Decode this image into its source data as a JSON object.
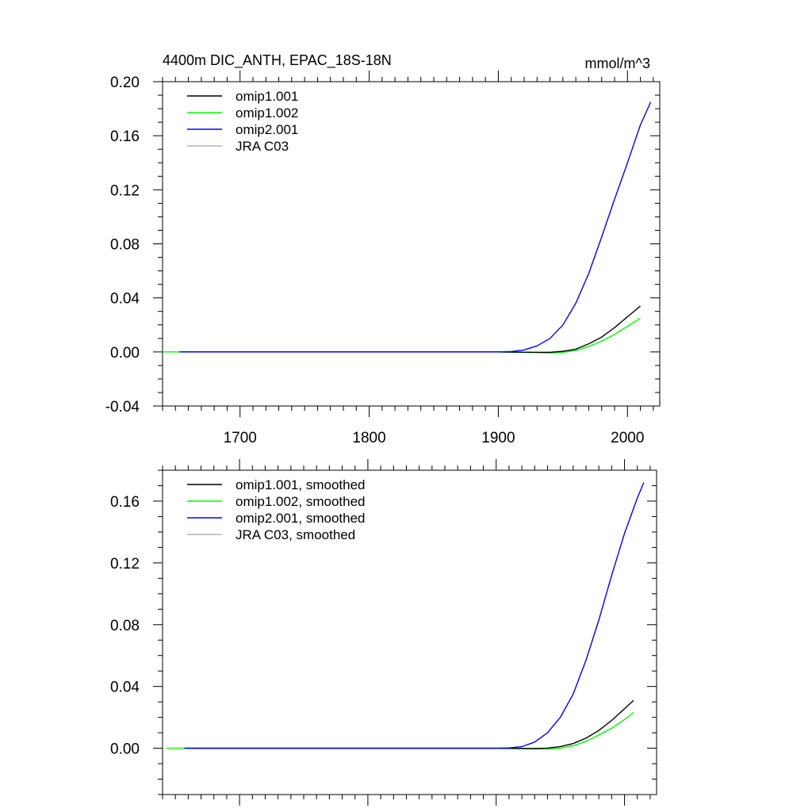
{
  "chart_data": [
    {
      "type": "line",
      "title": "4400m DIC_ANTH, EPAC_18S-18N",
      "units": "mmol/m^3",
      "xlim": [
        1640,
        2025
      ],
      "ylim": [
        -0.04,
        0.2
      ],
      "x_ticks": [
        1700,
        1800,
        1900,
        2000
      ],
      "x_tick_labels": [
        "1700",
        "1800",
        "1900",
        "2000"
      ],
      "y_ticks": [
        -0.04,
        0.0,
        0.04,
        0.08,
        0.12,
        0.16,
        0.2
      ],
      "y_tick_labels": [
        "-0.04",
        "0.00",
        "0.04",
        "0.08",
        "0.12",
        "0.16",
        "0.20"
      ],
      "legend_position": "top-left",
      "series": [
        {
          "name": "omip1.001",
          "color": "#000000",
          "x": [
            1653,
            1700,
            1800,
            1900,
            1930,
            1940,
            1950,
            1960,
            1970,
            1980,
            1990,
            2000,
            2010
          ],
          "y": [
            0,
            0,
            0,
            0,
            -0.0003,
            -0.0003,
            0.0005,
            0.002,
            0.006,
            0.011,
            0.018,
            0.026,
            0.034
          ]
        },
        {
          "name": "omip1.002",
          "color": "#00ff00",
          "x": [
            1640,
            1700,
            1800,
            1900,
            1930,
            1940,
            1950,
            1960,
            1970,
            1980,
            1990,
            2000,
            2010
          ],
          "y": [
            0,
            0,
            0,
            0,
            -0.0005,
            -0.0008,
            -0.0003,
            0.001,
            0.004,
            0.008,
            0.013,
            0.019,
            0.025
          ]
        },
        {
          "name": "omip2.001",
          "color": "#0000ff",
          "x": [
            1653,
            1700,
            1800,
            1900,
            1910,
            1920,
            1930,
            1940,
            1950,
            1960,
            1970,
            1980,
            1990,
            2000,
            2010,
            2018
          ],
          "y": [
            0,
            0,
            0,
            0,
            0.0003,
            0.0015,
            0.0045,
            0.01,
            0.02,
            0.036,
            0.058,
            0.085,
            0.113,
            0.14,
            0.168,
            0.185
          ]
        },
        {
          "name": "JRA C03",
          "color": "#b4b4b4",
          "x": [],
          "y": []
        }
      ]
    },
    {
      "type": "line",
      "title": "",
      "xlim": [
        1640,
        2025
      ],
      "ylim": [
        -0.03,
        0.18
      ],
      "x_ticks": [
        1700,
        1800,
        1900,
        2000
      ],
      "x_tick_labels": [],
      "y_ticks": [
        0.0,
        0.04,
        0.08,
        0.12,
        0.16
      ],
      "y_tick_labels": [
        "0.00",
        "0.04",
        "0.08",
        "0.12",
        "0.16"
      ],
      "legend_position": "top-left",
      "series": [
        {
          "name": "omip1.001, smoothed",
          "color": "#000000",
          "x": [
            1657,
            1700,
            1800,
            1900,
            1930,
            1940,
            1950,
            1960,
            1970,
            1980,
            1990,
            2000,
            2007
          ],
          "y": [
            0,
            0,
            0,
            0,
            -0.0002,
            0.0001,
            0.001,
            0.003,
            0.0065,
            0.0115,
            0.018,
            0.0255,
            0.031
          ]
        },
        {
          "name": "omip1.002, smoothed",
          "color": "#00ff00",
          "x": [
            1643,
            1700,
            1800,
            1900,
            1930,
            1940,
            1950,
            1960,
            1970,
            1980,
            1990,
            2000,
            2007
          ],
          "y": [
            0,
            0,
            0,
            0,
            -0.0004,
            -0.0005,
            0.0,
            0.0015,
            0.0045,
            0.0085,
            0.013,
            0.0185,
            0.023
          ]
        },
        {
          "name": "omip2.001, smoothed",
          "color": "#0000ff",
          "x": [
            1657,
            1700,
            1800,
            1900,
            1910,
            1920,
            1930,
            1940,
            1950,
            1960,
            1970,
            1980,
            1990,
            2000,
            2010,
            2015
          ],
          "y": [
            0,
            0,
            0,
            0,
            0.0002,
            0.001,
            0.004,
            0.01,
            0.02,
            0.035,
            0.057,
            0.083,
            0.112,
            0.139,
            0.162,
            0.172
          ]
        },
        {
          "name": "JRA C03, smoothed",
          "color": "#b4b4b4",
          "x": [],
          "y": []
        }
      ]
    }
  ]
}
